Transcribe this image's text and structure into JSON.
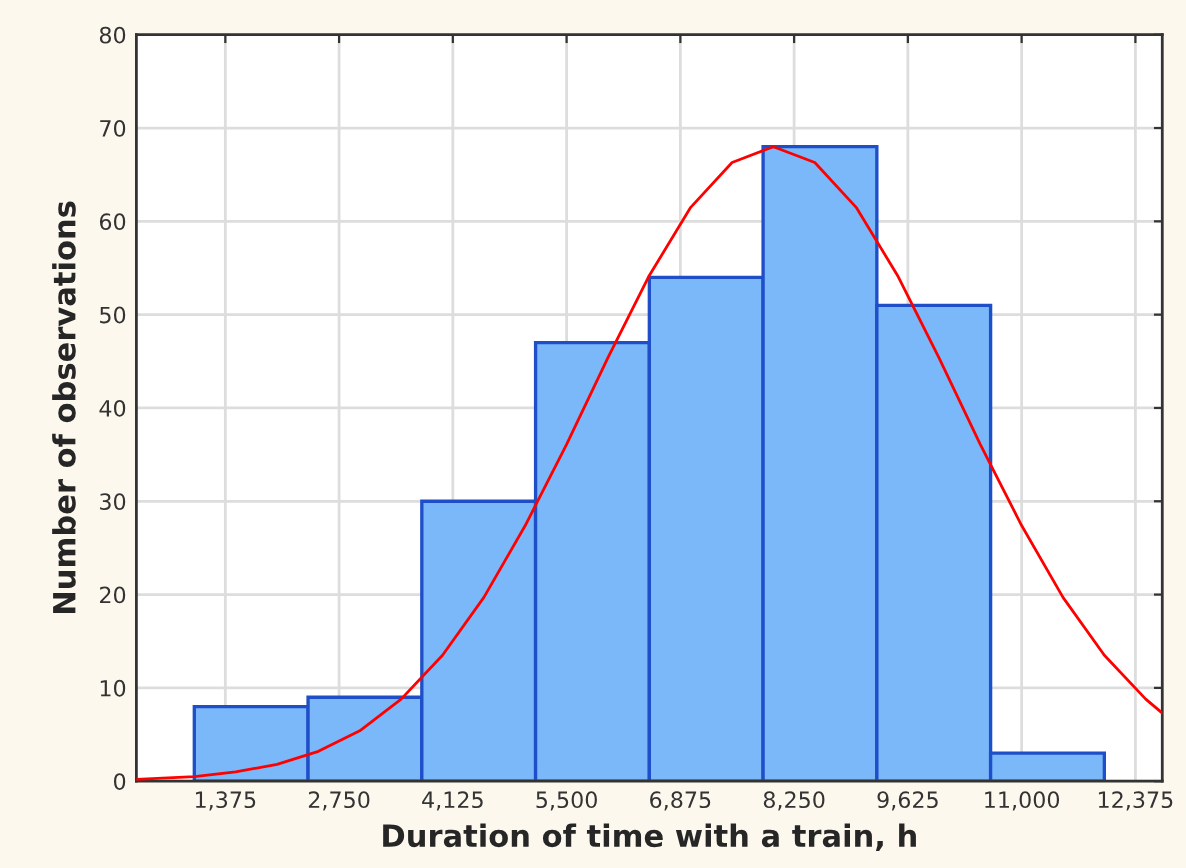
{
  "chart_data": {
    "type": "histogram",
    "xlabel": "Duration of time with a train, h",
    "ylabel": "Number of observations",
    "series": [
      {
        "bins": [
          1000,
          2375,
          3750,
          5125,
          6500,
          7875,
          9250,
          10625,
          12000
        ],
        "values": [
          8,
          9,
          30,
          47,
          54,
          68,
          51,
          3
        ],
        "color": "#7ab8fa"
      },
      {
        "type": "line",
        "color": "#ff0000",
        "x": [
          300,
          1000,
          1500,
          2000,
          2500,
          3000,
          3500,
          4000,
          4500,
          5000,
          5500,
          6000,
          6500,
          7000,
          7500,
          8000,
          8500,
          9000,
          9500,
          10000,
          10500,
          11000,
          11500,
          12000,
          12500,
          12700
        ],
        "values": [
          0.2,
          0.5,
          1.0,
          1.8,
          3.2,
          5.4,
          8.8,
          13.5,
          19.7,
          27.4,
          36.1,
          45.4,
          54.2,
          61.5,
          66.3,
          68,
          66.3,
          61.5,
          54.2,
          45.4,
          36.1,
          27.4,
          19.7,
          13.5,
          8.8,
          7.3
        ]
      }
    ],
    "xlim": [
      300,
      12700
    ],
    "ylim": [
      0,
      80
    ],
    "xticks": [
      {
        "value": 1375,
        "label": "1,375"
      },
      {
        "value": 2750,
        "label": "2,750"
      },
      {
        "value": 4125,
        "label": "4,125"
      },
      {
        "value": 5500,
        "label": "5,500"
      },
      {
        "value": 6875,
        "label": "6,875"
      },
      {
        "value": 8250,
        "label": "8,250"
      },
      {
        "value": 9625,
        "label": "9,625"
      },
      {
        "value": 11000,
        "label": "11,000"
      },
      {
        "value": 12375,
        "label": "12,375"
      }
    ],
    "yticks": [
      0,
      10,
      20,
      30,
      40,
      50,
      60,
      70,
      80
    ],
    "grid": true
  }
}
